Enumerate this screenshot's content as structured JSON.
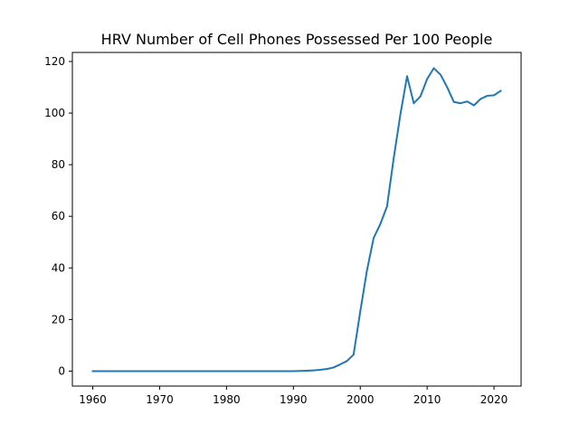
{
  "chart_data": {
    "type": "line",
    "title": "HRV Number of Cell Phones Possessed Per 100 People",
    "xlabel": "",
    "ylabel": "",
    "xlim": [
      1956.95,
      2024.05
    ],
    "ylim": [
      -5.8,
      123.5
    ],
    "x_ticks": [
      1960,
      1970,
      1980,
      1990,
      2000,
      2010,
      2020
    ],
    "y_ticks": [
      0,
      20,
      40,
      60,
      80,
      100,
      120
    ],
    "grid": false,
    "legend": "none",
    "series": [
      {
        "color": "#1f77b4",
        "x": [
          1960,
          1961,
          1962,
          1963,
          1964,
          1965,
          1966,
          1967,
          1968,
          1969,
          1970,
          1971,
          1972,
          1973,
          1974,
          1975,
          1976,
          1977,
          1978,
          1979,
          1980,
          1981,
          1982,
          1983,
          1984,
          1985,
          1986,
          1987,
          1988,
          1989,
          1990,
          1991,
          1992,
          1993,
          1994,
          1995,
          1996,
          1997,
          1998,
          1999,
          2000,
          2001,
          2002,
          2003,
          2004,
          2005,
          2006,
          2007,
          2008,
          2009,
          2010,
          2011,
          2012,
          2013,
          2014,
          2015,
          2016,
          2017,
          2018,
          2019,
          2020,
          2021
        ],
        "y": [
          0,
          0,
          0,
          0,
          0,
          0,
          0,
          0,
          0,
          0,
          0,
          0,
          0,
          0,
          0,
          0,
          0,
          0,
          0,
          0,
          0,
          0,
          0,
          0,
          0,
          0,
          0,
          0,
          0,
          0,
          0,
          0.05,
          0.15,
          0.3,
          0.5,
          0.8,
          1.4,
          2.6,
          3.9,
          6.4,
          23.1,
          39.0,
          51.6,
          57.0,
          63.8,
          82.5,
          99.5,
          114.3,
          103.8,
          106.5,
          113.2,
          117.4,
          114.9,
          110.0,
          104.3,
          103.8,
          104.5,
          103.0,
          105.5,
          106.7,
          106.9,
          108.6
        ]
      }
    ]
  }
}
